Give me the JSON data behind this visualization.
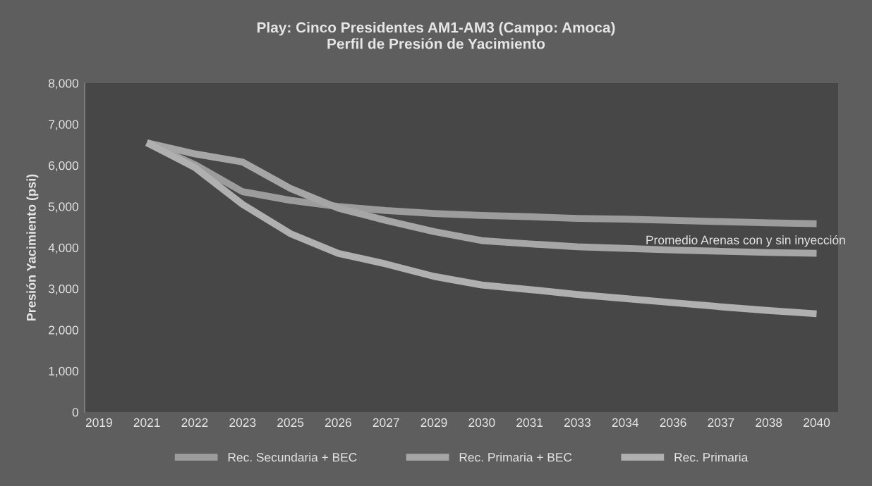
{
  "chart_data": {
    "type": "line",
    "title": "Play: Cinco Presidentes AM1-AM3 (Campo: Amoca)\nPerfil de Presión de Yacimiento",
    "ylabel": "Presión Yacimiento (psi)",
    "annotations": [
      "Promedio Arenas con y sin inyección"
    ],
    "categories": [
      "2019",
      "2021",
      "2022",
      "2023",
      "2025",
      "2026",
      "2027",
      "2029",
      "2030",
      "2031",
      "2033",
      "2034",
      "2036",
      "2037",
      "2038",
      "2040"
    ],
    "ylim": [
      0,
      8000
    ],
    "yticks": [
      {
        "value": 0,
        "label": "0"
      },
      {
        "value": 1000,
        "label": "1,000"
      },
      {
        "value": 2000,
        "label": "2,000"
      },
      {
        "value": 3000,
        "label": "3,000"
      },
      {
        "value": 4000,
        "label": "4,000"
      },
      {
        "value": 5000,
        "label": "5,000"
      },
      {
        "value": 6000,
        "label": "6,000"
      },
      {
        "value": 7000,
        "label": "7,000"
      },
      {
        "value": 8000,
        "label": "8,000"
      }
    ],
    "legend": "bottom",
    "line_style": "solid",
    "series": [
      {
        "name": "Rec. Secundaria + BEC",
        "color": "#9c9c9c",
        "values": [
          null,
          6550,
          6020,
          5360,
          5150,
          5000,
          4900,
          4830,
          4780,
          4750,
          4710,
          4690,
          4660,
          4630,
          4600,
          4580
        ]
      },
      {
        "name": "Rec. Primaria + BEC",
        "color": "#a6a6a6",
        "values": [
          null,
          6550,
          6280,
          6080,
          5440,
          4960,
          4660,
          4390,
          4170,
          4090,
          4020,
          3980,
          3940,
          3910,
          3880,
          3860
        ]
      },
      {
        "name": "Rec. Primaria",
        "color": "#b0b0b0",
        "values": [
          null,
          6550,
          5950,
          5050,
          4340,
          3860,
          3600,
          3300,
          3090,
          2980,
          2860,
          2760,
          2660,
          2560,
          2470,
          2390
        ]
      }
    ]
  }
}
